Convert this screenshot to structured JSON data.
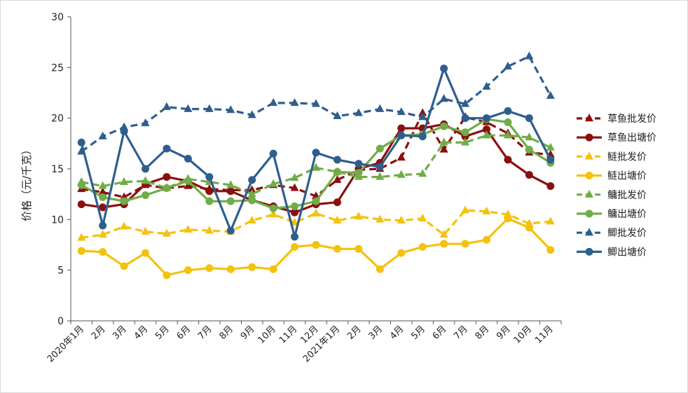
{
  "chart_data": {
    "type": "line",
    "title": "",
    "ylabel": "价格（元/千克）",
    "xlabel": "",
    "ylim": [
      0,
      30
    ],
    "yticks": [
      0,
      5,
      10,
      15,
      20,
      25,
      30
    ],
    "grid": false,
    "legend_position": "right",
    "categories": [
      "2020年1月",
      "2月",
      "3月",
      "4月",
      "5月",
      "6月",
      "7月",
      "8月",
      "9月",
      "10月",
      "11月",
      "12月",
      "2021年1月",
      "2月",
      "3月",
      "4月",
      "5月",
      "6月",
      "7月",
      "8月",
      "9月",
      "10月",
      "11月"
    ],
    "series": [
      {
        "name": "草鱼批发价",
        "color": "#8b0f0f",
        "dash": true,
        "marker": "triangle",
        "values": [
          13.0,
          12.7,
          12.2,
          13.4,
          13.1,
          13.3,
          13.0,
          12.9,
          12.9,
          13.4,
          13.1,
          12.3,
          13.9,
          14.9,
          15.0,
          16.1,
          20.5,
          16.9,
          20.1,
          19.6,
          18.5,
          16.6,
          16.4
        ]
      },
      {
        "name": "草鱼出塘价",
        "color": "#8b0f0f",
        "dash": false,
        "marker": "circle",
        "values": [
          11.5,
          11.2,
          11.5,
          13.5,
          14.2,
          13.8,
          12.8,
          12.8,
          11.9,
          11.3,
          10.7,
          11.5,
          11.7,
          15.0,
          15.6,
          19.0,
          19.0,
          19.4,
          18.2,
          18.9,
          15.9,
          14.4,
          13.3
        ]
      },
      {
        "name": "鲢批发价",
        "color": "#f4c20d",
        "dash": true,
        "marker": "triangle",
        "values": [
          8.2,
          8.5,
          9.3,
          8.8,
          8.6,
          9.0,
          8.9,
          8.8,
          9.9,
          10.5,
          9.7,
          10.6,
          9.9,
          10.3,
          10.0,
          9.9,
          10.1,
          8.5,
          10.9,
          10.8,
          10.5,
          9.6,
          9.8
        ]
      },
      {
        "name": "鲢出塘价",
        "color": "#f4c20d",
        "dash": false,
        "marker": "circle",
        "values": [
          6.9,
          6.8,
          5.4,
          6.7,
          4.5,
          5.0,
          5.2,
          5.1,
          5.3,
          5.1,
          7.3,
          7.5,
          7.1,
          7.1,
          5.1,
          6.7,
          7.3,
          7.6,
          7.6,
          8.0,
          10.1,
          9.2,
          7.0
        ]
      },
      {
        "name": "鳙批发价",
        "color": "#70ad47",
        "dash": true,
        "marker": "triangle",
        "values": [
          13.7,
          13.3,
          13.7,
          13.8,
          13.1,
          14.0,
          13.7,
          13.4,
          12.5,
          13.5,
          14.1,
          15.1,
          14.7,
          14.2,
          14.2,
          14.4,
          14.5,
          17.6,
          17.6,
          18.3,
          18.3,
          18.1,
          17.1
        ]
      },
      {
        "name": "鳙出塘价",
        "color": "#70ad47",
        "dash": false,
        "marker": "circle",
        "values": [
          13.4,
          12.2,
          11.8,
          12.4,
          13.1,
          13.8,
          11.8,
          11.8,
          11.9,
          11.1,
          11.3,
          11.8,
          14.7,
          14.6,
          17.0,
          18.3,
          18.4,
          19.2,
          18.6,
          19.9,
          19.6,
          16.9,
          15.6
        ]
      },
      {
        "name": "鲫批发价",
        "color": "#2e5e8e",
        "dash": true,
        "marker": "triangle",
        "values": [
          16.7,
          18.2,
          19.1,
          19.5,
          21.1,
          20.9,
          20.9,
          20.8,
          20.3,
          21.5,
          21.5,
          21.4,
          20.2,
          20.5,
          20.9,
          20.6,
          20.1,
          21.9,
          21.4,
          23.1,
          25.1,
          26.1,
          22.2
        ]
      },
      {
        "name": "鲫出塘价",
        "color": "#2e5e8e",
        "dash": false,
        "marker": "circle",
        "values": [
          17.6,
          9.4,
          18.7,
          15.0,
          17.0,
          16.0,
          14.2,
          8.9,
          13.9,
          16.5,
          8.3,
          16.6,
          15.9,
          15.5,
          15.2,
          18.3,
          18.2,
          24.9,
          20.0,
          20.0,
          20.7,
          20.0,
          15.9
        ]
      }
    ]
  }
}
